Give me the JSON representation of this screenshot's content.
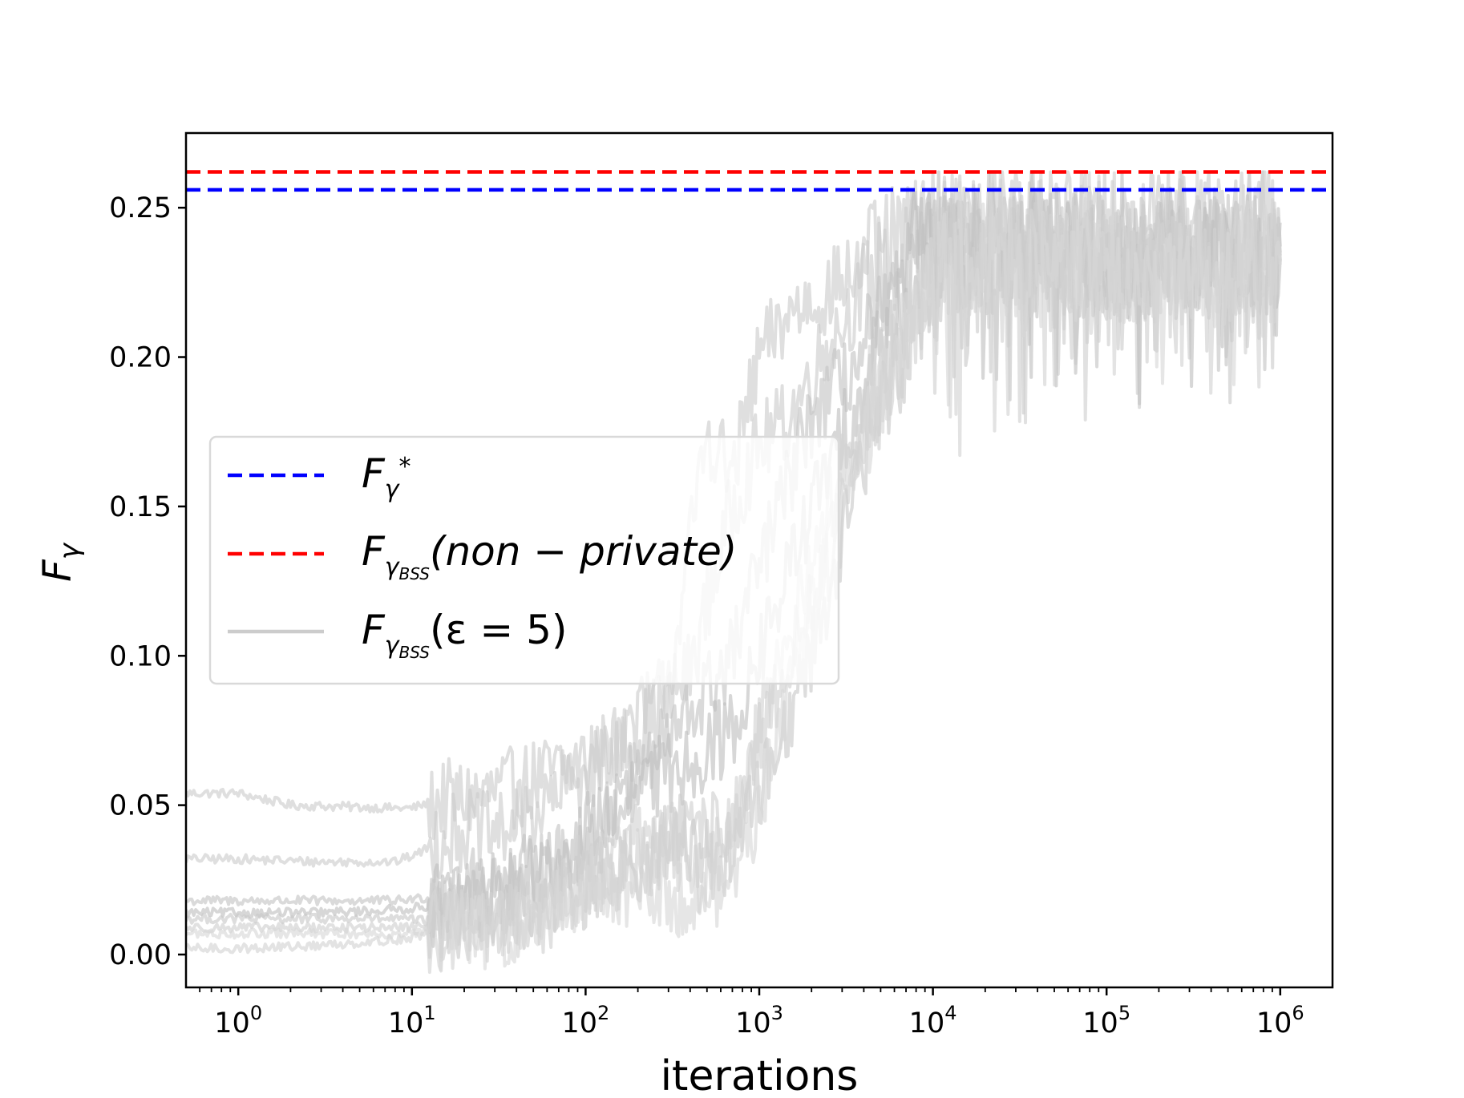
{
  "chart_data": {
    "type": "line",
    "xlabel": "iterations",
    "ylabel_main": "F",
    "ylabel_sub": "γ",
    "xscale": "log",
    "xlim": [
      0.5,
      2000000
    ],
    "ylim": [
      -0.011,
      0.275
    ],
    "grid": false,
    "legend_placement": "center-left",
    "x_ticks": [
      {
        "value": 1,
        "base": "10",
        "exp": "0"
      },
      {
        "value": 10,
        "base": "10",
        "exp": "1"
      },
      {
        "value": 100,
        "base": "10",
        "exp": "2"
      },
      {
        "value": 1000,
        "base": "10",
        "exp": "3"
      },
      {
        "value": 10000,
        "base": "10",
        "exp": "4"
      },
      {
        "value": 100000,
        "base": "10",
        "exp": "5"
      },
      {
        "value": 1000000,
        "base": "10",
        "exp": "6"
      }
    ],
    "y_ticks": [
      {
        "value": 0.0,
        "label": "0.00"
      },
      {
        "value": 0.05,
        "label": "0.05"
      },
      {
        "value": 0.1,
        "label": "0.10"
      },
      {
        "value": 0.15,
        "label": "0.15"
      },
      {
        "value": 0.2,
        "label": "0.20"
      },
      {
        "value": 0.25,
        "label": "0.25"
      }
    ],
    "reference_lines": [
      {
        "value": 0.256,
        "color": "#0000ff",
        "style": "dashed",
        "legend_main": "F",
        "legend_sub": "γ",
        "legend_sup": "*",
        "legend_suffix": ""
      },
      {
        "value": 0.262,
        "color": "#ff0000",
        "style": "dashed",
        "legend_main": "F",
        "legend_sub": "γ",
        "legend_subsub": "BSS",
        "legend_suffix": "(non − private)"
      }
    ],
    "noisy_series_legend": {
      "main": "F",
      "sub": "γ",
      "subsub": "BSS",
      "suffix": "(ε = 5)",
      "color": "#c8c8c8"
    },
    "noisy_series": [
      {
        "name": "run1",
        "color": "#cccccc",
        "points": [
          [
            0.5,
            0.054
          ],
          [
            1,
            0.054
          ],
          [
            2,
            0.05
          ],
          [
            8,
            0.049
          ],
          [
            10,
            0.049
          ],
          [
            13,
            0.051
          ],
          [
            20,
            0.052
          ],
          [
            35,
            0.055
          ],
          [
            60,
            0.06
          ],
          [
            100,
            0.065
          ],
          [
            200,
            0.073
          ],
          [
            400,
            0.095
          ],
          [
            700,
            0.15
          ],
          [
            1000,
            0.17
          ],
          [
            1500,
            0.18
          ],
          [
            2500,
            0.205
          ],
          [
            4000,
            0.222
          ],
          [
            7000,
            0.232
          ],
          [
            10000,
            0.245
          ],
          [
            20000,
            0.24
          ],
          [
            50000,
            0.238
          ],
          [
            100000,
            0.236
          ],
          [
            300000,
            0.234
          ],
          [
            1000000,
            0.235
          ]
        ]
      },
      {
        "name": "run2",
        "color": "#cccccc",
        "points": [
          [
            0.5,
            0.032
          ],
          [
            1,
            0.032
          ],
          [
            3,
            0.031
          ],
          [
            8,
            0.031
          ],
          [
            11,
            0.034
          ],
          [
            16,
            0.04
          ],
          [
            20,
            0.042
          ],
          [
            30,
            0.04
          ],
          [
            60,
            0.05
          ],
          [
            120,
            0.065
          ],
          [
            300,
            0.09
          ],
          [
            500,
            0.175
          ],
          [
            700,
            0.16
          ],
          [
            1000,
            0.2
          ],
          [
            1500,
            0.215
          ],
          [
            2500,
            0.222
          ],
          [
            5000,
            0.235
          ],
          [
            10000,
            0.245
          ],
          [
            30000,
            0.245
          ],
          [
            100000,
            0.243
          ],
          [
            1000000,
            0.245
          ]
        ]
      },
      {
        "name": "run3",
        "color": "#c4c4c4",
        "points": [
          [
            0.5,
            0.018
          ],
          [
            1,
            0.018
          ],
          [
            3,
            0.018
          ],
          [
            8,
            0.018
          ],
          [
            12,
            0.019
          ],
          [
            16,
            0.02
          ],
          [
            25,
            0.022
          ],
          [
            40,
            0.025
          ],
          [
            70,
            0.03
          ],
          [
            120,
            0.04
          ],
          [
            200,
            0.06
          ],
          [
            400,
            0.08
          ],
          [
            700,
            0.1
          ],
          [
            1000,
            0.13
          ],
          [
            2000,
            0.18
          ],
          [
            4000,
            0.2
          ],
          [
            7000,
            0.22
          ],
          [
            10000,
            0.235
          ],
          [
            30000,
            0.238
          ],
          [
            100000,
            0.236
          ],
          [
            1000000,
            0.237
          ]
        ]
      },
      {
        "name": "run4",
        "color": "#bfbfbf",
        "points": [
          [
            0.5,
            0.014
          ],
          [
            1,
            0.014
          ],
          [
            3,
            0.014
          ],
          [
            8,
            0.015
          ],
          [
            12,
            0.016
          ],
          [
            17,
            0.018
          ],
          [
            25,
            0.02
          ],
          [
            40,
            0.022
          ],
          [
            70,
            0.03
          ],
          [
            120,
            0.045
          ],
          [
            200,
            0.055
          ],
          [
            400,
            0.065
          ],
          [
            700,
            0.075
          ],
          [
            1000,
            0.1
          ],
          [
            2000,
            0.15
          ],
          [
            4000,
            0.19
          ],
          [
            6500,
            0.22
          ],
          [
            7000,
            0.235
          ],
          [
            10000,
            0.236
          ],
          [
            50000,
            0.233
          ],
          [
            100000,
            0.232
          ],
          [
            1000000,
            0.233
          ]
        ]
      },
      {
        "name": "run5",
        "color": "#c8c8c8",
        "points": [
          [
            0.5,
            0.012
          ],
          [
            1,
            0.012
          ],
          [
            3,
            0.012
          ],
          [
            8,
            0.012
          ],
          [
            14,
            0.011
          ],
          [
            20,
            0.012
          ],
          [
            35,
            0.015
          ],
          [
            60,
            0.018
          ],
          [
            100,
            0.022
          ],
          [
            200,
            0.03
          ],
          [
            350,
            0.04
          ],
          [
            600,
            0.03
          ],
          [
            1000,
            0.055
          ],
          [
            1500,
            0.08
          ],
          [
            2500,
            0.12
          ],
          [
            4000,
            0.17
          ],
          [
            7000,
            0.205
          ],
          [
            10000,
            0.23
          ],
          [
            30000,
            0.235
          ],
          [
            100000,
            0.232
          ],
          [
            1000000,
            0.234
          ]
        ]
      },
      {
        "name": "run6",
        "color": "#cfcfcf",
        "points": [
          [
            0.5,
            0.009
          ],
          [
            1,
            0.009
          ],
          [
            3,
            0.009
          ],
          [
            8,
            0.009
          ],
          [
            14,
            0.01
          ],
          [
            20,
            0.012
          ],
          [
            35,
            0.01
          ],
          [
            60,
            0.014
          ],
          [
            120,
            0.025
          ],
          [
            250,
            0.035
          ],
          [
            500,
            0.04
          ],
          [
            800,
            0.045
          ],
          [
            1000,
            0.07
          ],
          [
            1500,
            0.1
          ],
          [
            2500,
            0.13
          ],
          [
            4000,
            0.17
          ],
          [
            6000,
            0.2
          ],
          [
            10000,
            0.228
          ],
          [
            30000,
            0.232
          ],
          [
            100000,
            0.23
          ],
          [
            1000000,
            0.232
          ]
        ]
      },
      {
        "name": "run7",
        "color": "#d2d2d2",
        "points": [
          [
            0.5,
            0.002
          ],
          [
            1,
            0.002
          ],
          [
            3,
            0.003
          ],
          [
            8,
            0.005
          ],
          [
            14,
            0.007
          ],
          [
            20,
            0.008
          ],
          [
            35,
            0.009
          ],
          [
            60,
            0.02
          ],
          [
            120,
            0.035
          ],
          [
            250,
            0.04
          ],
          [
            500,
            0.025
          ],
          [
            800,
            0.05
          ],
          [
            1000,
            0.075
          ],
          [
            1600,
            0.11
          ],
          [
            2500,
            0.15
          ],
          [
            4000,
            0.18
          ],
          [
            7000,
            0.21
          ],
          [
            10000,
            0.23
          ],
          [
            30000,
            0.233
          ],
          [
            100000,
            0.231
          ],
          [
            1000000,
            0.233
          ]
        ]
      },
      {
        "name": "run8",
        "color": "#d6d6d6",
        "points": [
          [
            0.5,
            0.007
          ],
          [
            1,
            0.007
          ],
          [
            3,
            0.007
          ],
          [
            8,
            0.007
          ],
          [
            15,
            0.008
          ],
          [
            25,
            0.008
          ],
          [
            40,
            0.01
          ],
          [
            70,
            0.017
          ],
          [
            130,
            0.025
          ],
          [
            260,
            0.02
          ],
          [
            600,
            0.02
          ],
          [
            900,
            0.04
          ],
          [
            1200,
            0.065
          ],
          [
            2000,
            0.12
          ],
          [
            3500,
            0.165
          ],
          [
            6000,
            0.2
          ],
          [
            10000,
            0.228
          ],
          [
            100000,
            0.23
          ],
          [
            1000000,
            0.231
          ]
        ]
      }
    ]
  }
}
